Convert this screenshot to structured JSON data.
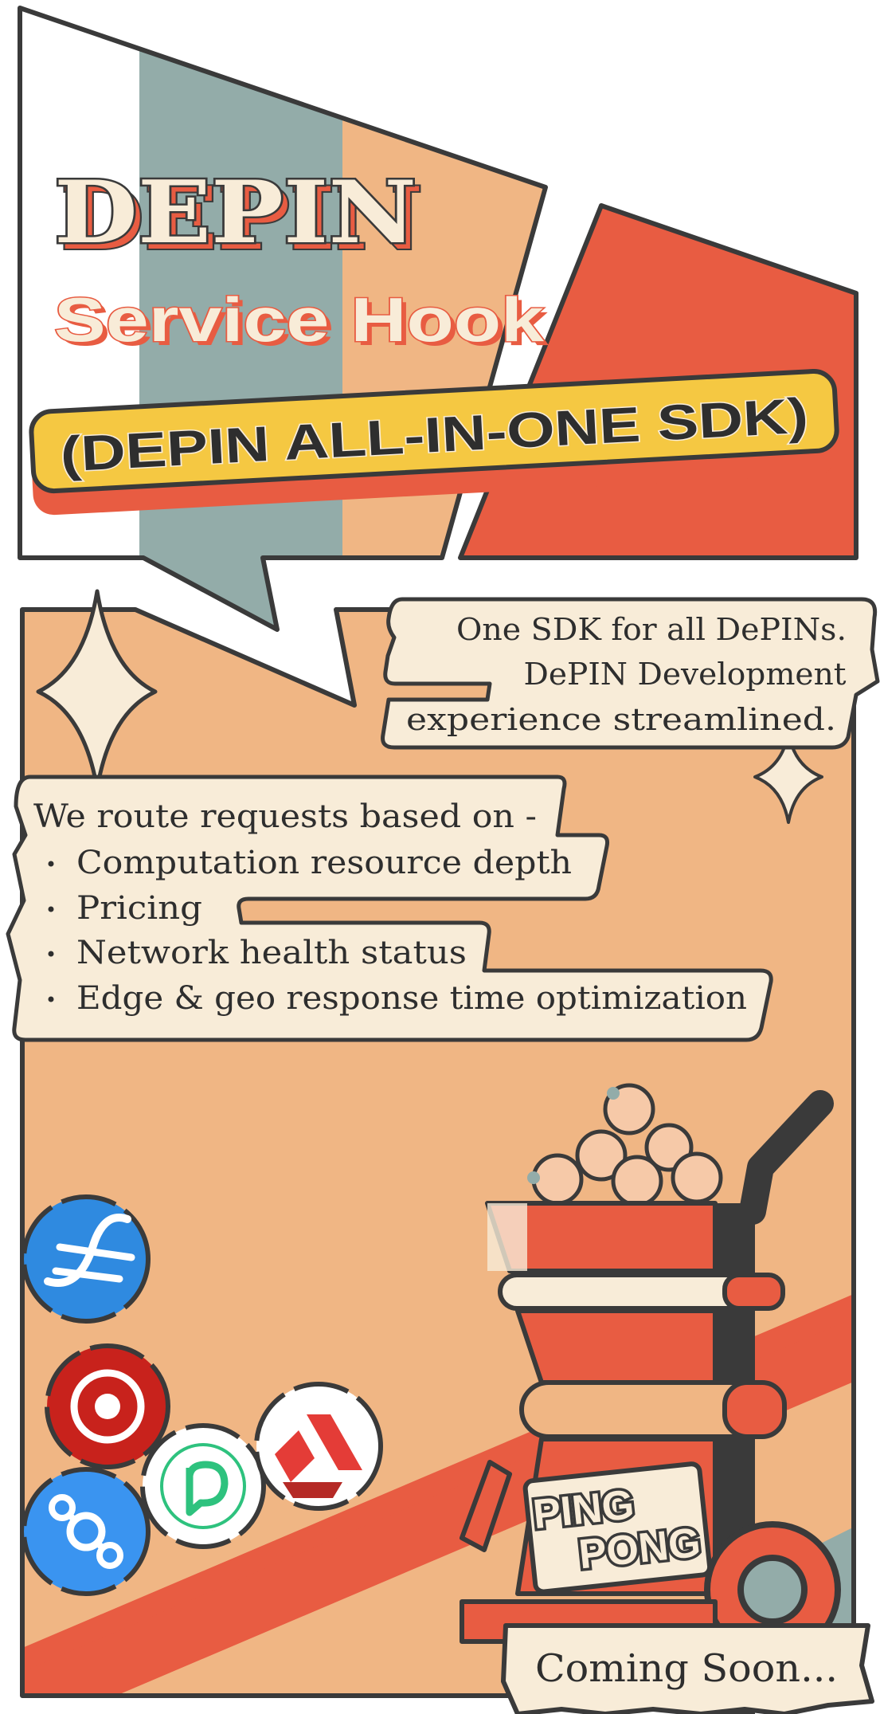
{
  "headline": {
    "line1": "DEPIN",
    "line2": "Service Hook",
    "line3": "(DEPIN ALL-IN-ONE SDK)"
  },
  "tagline": {
    "line1": "One SDK for all DePINs.",
    "line2": "DePIN Development",
    "line3": "experience streamlined."
  },
  "routing": {
    "intro": "We route requests based on -",
    "bullets": [
      "Computation resource depth",
      "Pricing",
      "Network health status",
      "Edge & geo response time optimization"
    ]
  },
  "mascot": {
    "line1": "PING",
    "line2": "PONG"
  },
  "footer": {
    "status": "Coming Soon..."
  },
  "partner_logos": [
    "filecoin-icon",
    "render-icon",
    "livepeer-icon",
    "akash-icon",
    "helium-icon"
  ],
  "colors": {
    "outline": "#3a3a3a",
    "peach": "#f0b684",
    "cream": "#f8ecd8",
    "red": "#e85c42",
    "sage": "#93aca9",
    "yellow": "#f5c842",
    "blue": "#2f8ae0"
  }
}
